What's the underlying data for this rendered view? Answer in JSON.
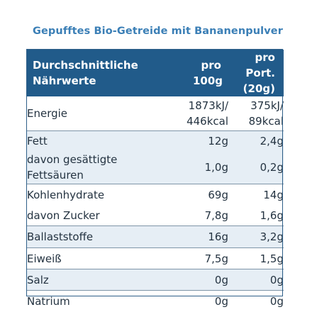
{
  "title": "Gepufftes Bio-Getreide mit Bananenpulver",
  "header": {
    "col1": "Durchschnittliche Nährwerte",
    "col2": "pro 100g",
    "col3": "pro Port. (20g)"
  },
  "rows": {
    "energie": {
      "label": "Energie",
      "v100_a": "1873kJ/",
      "v100_b": "446kcal",
      "vport_a": "375kJ/",
      "vport_b": "89kcal"
    },
    "fett": {
      "label": "Fett",
      "v100": "12g",
      "vport": "2,4g"
    },
    "gesaettigte": {
      "label": "davon gesättigte Fettsäuren",
      "v100": "1,0g",
      "vport": "0,2g"
    },
    "kohlenhydrate": {
      "label": "Kohlenhydrate",
      "v100": "69g",
      "vport": "14g"
    },
    "zucker": {
      "label": "davon Zucker",
      "v100": "7,8g",
      "vport": "1,6g"
    },
    "ballaststoffe": {
      "label": "Ballaststoffe",
      "v100": "16g",
      "vport": "3,2g"
    },
    "eiweiss": {
      "label": "Eiweiß",
      "v100": "7,5g",
      "vport": "1,5g"
    },
    "salz": {
      "label": "Salz",
      "v100": "0g",
      "vport": "0g"
    },
    "natrium": {
      "label": "Natrium",
      "v100": "0g",
      "vport": "0g"
    }
  },
  "colors": {
    "title": "#3b7fb6",
    "header_bg": "#215b8a",
    "row_shade": "#e6eef5",
    "border": "#2f5f88"
  }
}
